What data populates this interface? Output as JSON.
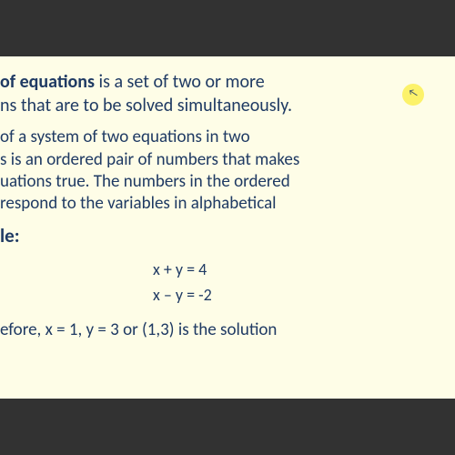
{
  "colors": {
    "page_bg": "#323232",
    "slide_bg": "#fefde7",
    "text": "#1f3a63",
    "highlight": "#fcf26a",
    "cursor": "#334a6e"
  },
  "typography": {
    "body_fontsize": 19,
    "heading_fontsize": 21,
    "eqn_fontsize": 18,
    "font_family": "Calibri, 'Segoe UI', Arial, sans-serif",
    "line_height": 1.28
  },
  "para1": {
    "bold": "of equations",
    "rest1": " is a set of two or more",
    "line2": "ns that are to be solved simultaneously."
  },
  "para2": {
    "l1": "of a system of two equations in two",
    "l2": "s is an ordered pair of numbers that makes",
    "l3": "uations true. The numbers in the ordered",
    "l4": "respond to the variables in alphabetical"
  },
  "example_label": "le:",
  "equations": {
    "eq1": "x + y = 4",
    "eq2": "x – y = -2"
  },
  "solution": "efore, x = 1, y = 3 or (1,3) is the solution",
  "cursor_glyph": "↖"
}
